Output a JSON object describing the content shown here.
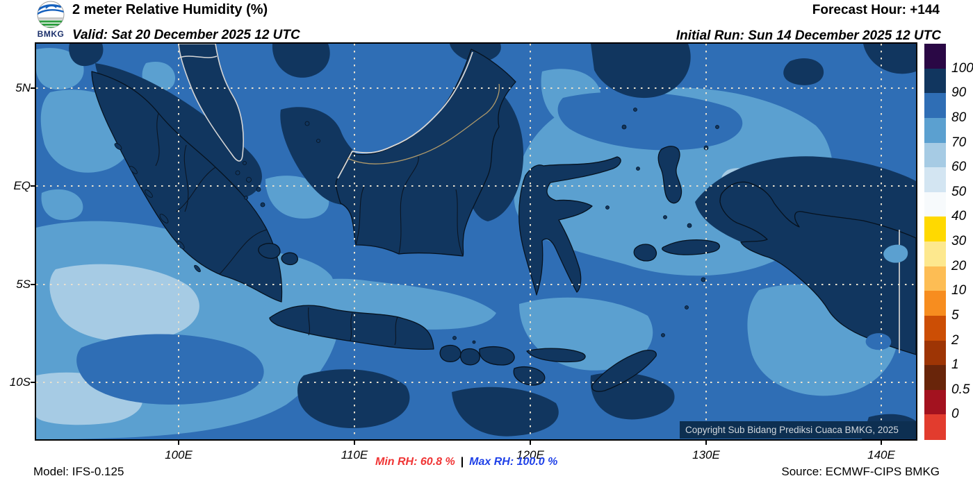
{
  "header": {
    "logo_text": "BMKG",
    "title": "2 meter Relative Humidity (%)",
    "valid_line": "Valid: Sat 20 December 2025 12 UTC",
    "forecast_hour_line": "Forecast Hour: +144",
    "initial_run_line": "Initial Run: Sun 14 December 2025 12 UTC"
  },
  "map": {
    "x_tick_labels": [
      "100E",
      "110E",
      "120E",
      "130E",
      "140E"
    ],
    "y_tick_labels": [
      "5N",
      "EQ",
      "5S",
      "10S"
    ],
    "copyright": "Copyright Sub Bidang Prediksi Cuaca BMKG, 2025",
    "colors": {
      "ocean_80_90": "#2f6eb5",
      "light_70_80": "#5ba0d0",
      "pale_60_70": "#a6cbe4",
      "land_90_100": "#11365f",
      "coastline": "#06121f",
      "foreign_coastline": "#d6d6d6",
      "foreign_border": "#b09a6a",
      "gridline": "#e9e1cf"
    }
  },
  "colorbar": {
    "tick_labels": [
      "100",
      "90",
      "80",
      "70",
      "60",
      "50",
      "40",
      "30",
      "20",
      "10",
      "5",
      "2",
      "1",
      "0.5",
      "0"
    ],
    "segment_colors_top_to_bottom": [
      "#2a0845",
      "#11365f",
      "#2f6eb5",
      "#5ba0d0",
      "#a6cbe4",
      "#d3e5f2",
      "#f7fafc",
      "#ffd900",
      "#fde88e",
      "#fdbd54",
      "#f78d1f",
      "#cc4e05",
      "#9e3505",
      "#69250a",
      "#a3121f",
      "#e23c2e"
    ]
  },
  "footer": {
    "model": "Model: IFS-0.125",
    "min_rh": "Min RH:  60.8 %",
    "separator": "|",
    "max_rh": "Max RH: 100.0 %",
    "source": "Source: ECMWF-CIPS BMKG",
    "min_color": "#f03535",
    "max_color": "#1f41e8"
  }
}
